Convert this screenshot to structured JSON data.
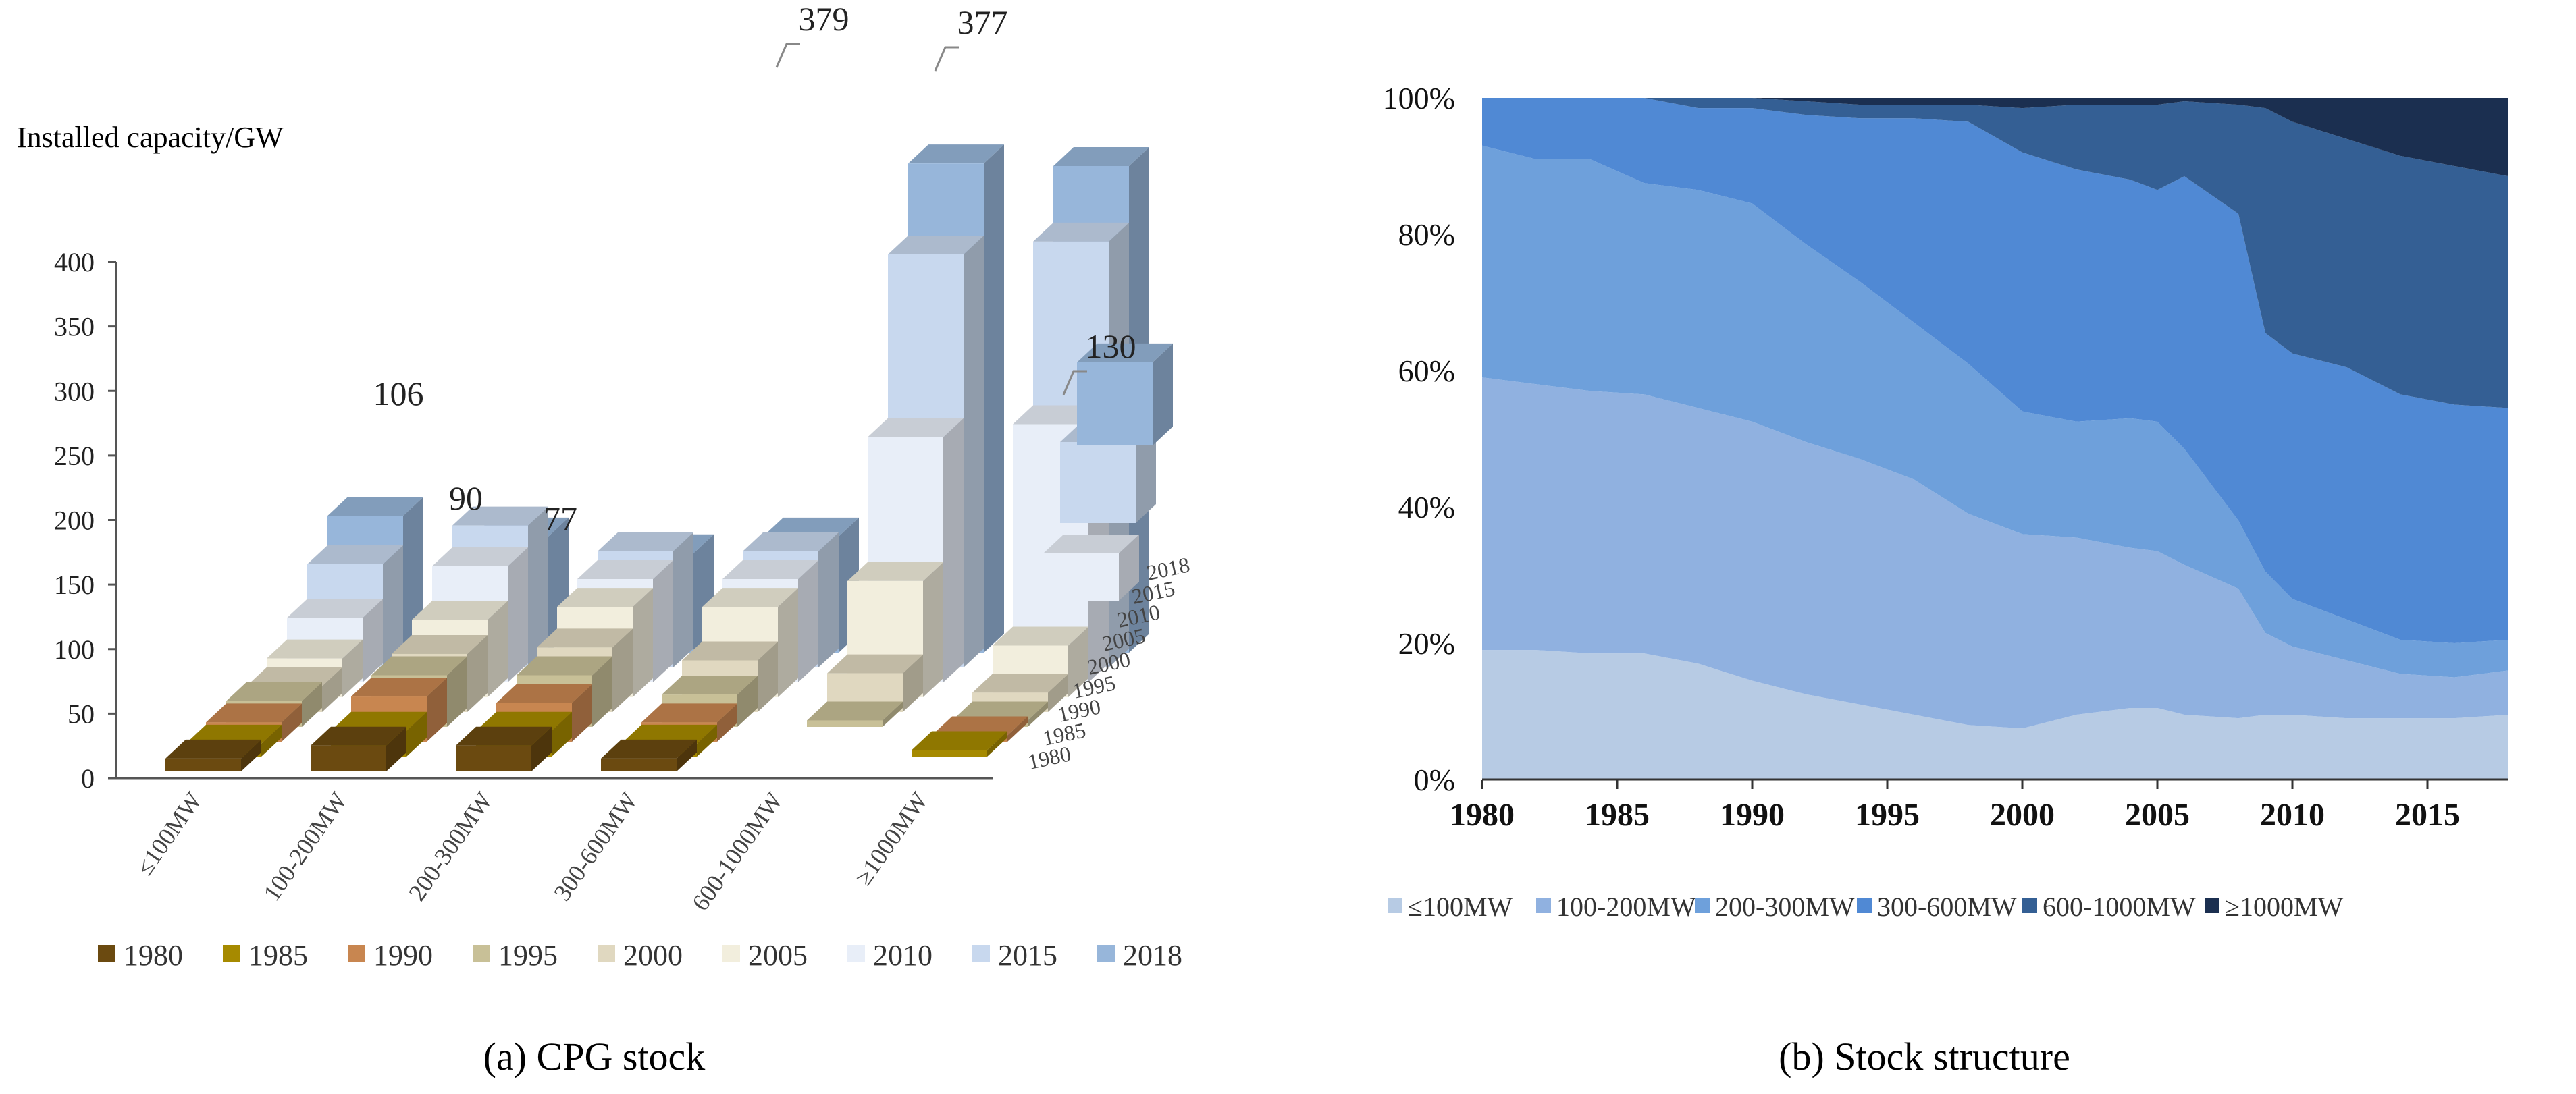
{
  "chart_data": [
    {
      "type": "bar",
      "subtype": "3d-column",
      "caption": "(a) CPG stock",
      "ylabel": "Installed capacity/GW",
      "ylim": [
        0,
        400
      ],
      "yticks": [
        "0",
        "50",
        "100",
        "150",
        "200",
        "250",
        "300",
        "350",
        "400"
      ],
      "yticks_values": [
        0,
        50,
        100,
        150,
        200,
        250,
        300,
        350,
        400
      ],
      "categories": [
        "≤100MW",
        "100-200MW",
        "200-300MW",
        "300-600MW",
        "600-1000MW",
        "≥1000MW"
      ],
      "depth_labels": [
        "1980",
        "1985",
        "1990",
        "1995",
        "2000",
        "2005",
        "2010",
        "2015",
        "2018"
      ],
      "series": [
        {
          "name": "1980",
          "color": "#6b4a10",
          "values": [
            10,
            20,
            20,
            10,
            0,
            0
          ]
        },
        {
          "name": "1985",
          "color": "#a68a00",
          "values": [
            10,
            20,
            20,
            10,
            0,
            5
          ]
        },
        {
          "name": "1990",
          "color": "#c88650",
          "values": [
            15,
            35,
            30,
            15,
            0,
            5
          ]
        },
        {
          "name": "1995",
          "color": "#c8c097",
          "values": [
            20,
            40,
            40,
            25,
            5,
            5
          ]
        },
        {
          "name": "2000",
          "color": "#e0d8c0",
          "values": [
            20,
            45,
            50,
            40,
            30,
            15
          ]
        },
        {
          "name": "2005",
          "color": "#f2eedd",
          "values": [
            30,
            60,
            70,
            70,
            90,
            40
          ]
        },
        {
          "name": "2010",
          "color": "#e8eef8",
          "values": [
            50,
            90,
            80,
            80,
            190,
            200
          ]
        },
        {
          "name": "2015",
          "color": "#c8d8ee",
          "values": [
            80,
            110,
            90,
            90,
            320,
            330
          ]
        },
        {
          "name": "2018",
          "color": "#97b6da",
          "values": [
            106,
            90,
            77,
            90,
            379,
            377
          ]
        }
      ],
      "extra_column": {
        "label": "130",
        "value": 130
      },
      "annotations": [
        {
          "text": "106",
          "category": "≤100MW",
          "series": "2018"
        },
        {
          "text": "90",
          "category": "100-200MW",
          "series": "2018"
        },
        {
          "text": "77",
          "category": "200-300MW",
          "series": "2018"
        },
        {
          "text": "379",
          "category": "600-1000MW",
          "series": "2018"
        },
        {
          "text": "377",
          "category": "≥1000MW",
          "series": "2018"
        },
        {
          "text": "130",
          "category": "total",
          "series": "2018"
        }
      ]
    },
    {
      "type": "area",
      "subtype": "stacked-percent",
      "caption": "(b) Stock structure",
      "xlabel": "",
      "ylabel": "",
      "x": [
        1980,
        1982,
        1984,
        1986,
        1988,
        1990,
        1992,
        1994,
        1996,
        1998,
        2000,
        2002,
        2004,
        2005,
        2006,
        2008,
        2009,
        2010,
        2012,
        2014,
        2016,
        2018
      ],
      "xticks": [
        "1980",
        "1985",
        "1990",
        "1995",
        "2000",
        "2005",
        "2010",
        "2015"
      ],
      "xticks_values": [
        1980,
        1985,
        1990,
        1995,
        2000,
        2005,
        2010,
        2015
      ],
      "xlim": [
        1980,
        2018
      ],
      "ylim": [
        0,
        100
      ],
      "yticks": [
        "0%",
        "20%",
        "40%",
        "60%",
        "80%",
        "100%"
      ],
      "yticks_values": [
        0,
        20,
        40,
        60,
        80,
        100
      ],
      "series": [
        {
          "name": "≤100MW",
          "color": "#b7cbe4",
          "values": [
            19,
            19,
            18.5,
            18.5,
            17,
            14.5,
            12.5,
            11,
            9.5,
            8,
            7.5,
            9.5,
            10.5,
            10.5,
            9.5,
            9,
            9.5,
            9.5,
            9,
            9,
            9,
            9.5
          ]
        },
        {
          "name": "100-200MW",
          "color": "#90b1e0",
          "values": [
            40,
            39,
            38.5,
            38,
            37.5,
            38,
            37,
            36,
            34.5,
            31,
            28.5,
            26,
            23.5,
            23,
            22,
            19,
            12,
            10,
            8.5,
            6.5,
            6,
            6.5
          ]
        },
        {
          "name": "200-300MW",
          "color": "#6ea0db",
          "values": [
            34,
            33,
            34,
            31,
            32,
            32,
            29,
            26,
            23,
            22,
            18,
            17,
            19,
            19,
            17,
            10,
            9,
            7,
            6,
            5,
            5,
            4.5
          ]
        },
        {
          "name": "300-600MW",
          "color": "#5089d4",
          "values": [
            7,
            9,
            9,
            12.5,
            12,
            14,
            19,
            24,
            30,
            35.5,
            38,
            37,
            35,
            34,
            40,
            45,
            35,
            36,
            37,
            36,
            35,
            34
          ]
        },
        {
          "name": "600-1000MW",
          "color": "#345f94",
          "values": [
            0,
            0,
            0,
            0,
            1.5,
            1.5,
            2,
            2,
            2,
            2.5,
            6.5,
            9.5,
            11,
            12.5,
            11,
            16,
            33,
            34,
            33.5,
            35,
            35,
            34
          ]
        },
        {
          "name": "≥1000MW",
          "color": "#1b2f50",
          "values": [
            0,
            0,
            0,
            0,
            0,
            0,
            0.5,
            1,
            1,
            1,
            1.5,
            1,
            1,
            1,
            0.5,
            1,
            1.5,
            3.5,
            6,
            8.5,
            10,
            11.5
          ]
        }
      ]
    }
  ]
}
